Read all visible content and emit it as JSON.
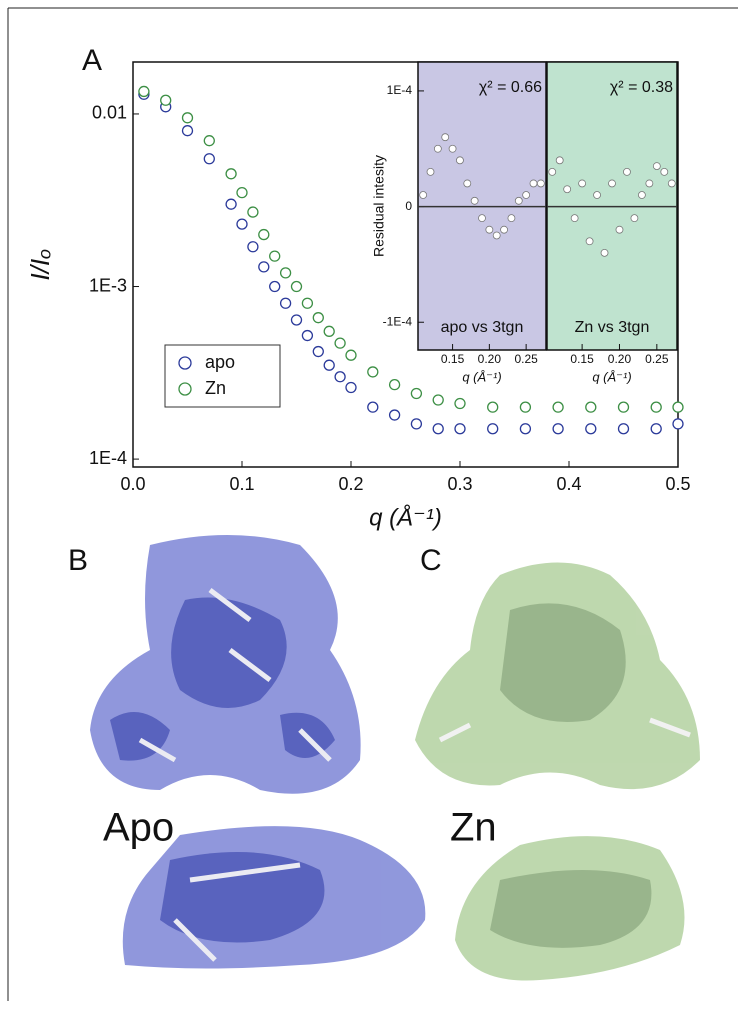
{
  "panel_labels": [
    "A",
    "B",
    "C"
  ],
  "structure_labels": [
    "Apo",
    "Zn"
  ],
  "chart_data": [
    {
      "type": "scatter",
      "xlabel": "q (Å⁻¹)",
      "ylabel": "I/Iₒ",
      "log_y": true,
      "legend": "center left",
      "xlim": [
        0,
        0.5
      ],
      "ylim": [
        9e-05,
        0.02
      ],
      "xticks": [
        {
          "value": 0,
          "label": "0.0"
        },
        0.1,
        0.2,
        0.3,
        0.4,
        0.5
      ],
      "yticks": [
        0.01,
        {
          "value": 0.001,
          "label": "1E-3"
        },
        {
          "value": 0.0001,
          "label": "1E-4"
        }
      ],
      "x": [
        0.01,
        0.03,
        0.05,
        0.07,
        0.09,
        0.1,
        0.11,
        0.12,
        0.13,
        0.14,
        0.15,
        0.16,
        0.17,
        0.18,
        0.19,
        0.2,
        0.22,
        0.24,
        0.26,
        0.28,
        0.3,
        0.33,
        0.36,
        0.39,
        0.42,
        0.45,
        0.48,
        0.5
      ],
      "series": [
        {
          "name": "apo",
          "color": "#2b3a9a",
          "values": [
            0.013,
            0.011,
            0.008,
            0.0055,
            0.003,
            0.0023,
            0.0017,
            0.0013,
            0.001,
            0.0008,
            0.00064,
            0.00052,
            0.00042,
            0.00035,
            0.0003,
            0.00026,
            0.0002,
            0.00018,
            0.00016,
            0.00015,
            0.00015,
            0.00015,
            0.00015,
            0.00015,
            0.00015,
            0.00015,
            0.00015,
            0.00016
          ]
        },
        {
          "name": "Zn",
          "color": "#3d8f45",
          "values": [
            0.0135,
            0.012,
            0.0095,
            0.007,
            0.0045,
            0.0035,
            0.0027,
            0.002,
            0.0015,
            0.0012,
            0.001,
            0.0008,
            0.00066,
            0.00055,
            0.00047,
            0.0004,
            0.00032,
            0.00027,
            0.00024,
            0.00022,
            0.00021,
            0.0002,
            0.0002,
            0.0002,
            0.0002,
            0.0002,
            0.0002,
            0.0002
          ]
        }
      ]
    },
    {
      "type": "scatter",
      "ylabel": "Residual intesity",
      "xlabel": "q (Å⁻¹)",
      "annotations": [
        "χ² = 0.66",
        "apo vs 3tgn"
      ],
      "xlim": [
        0.103,
        0.277
      ],
      "ylim": [
        -0.000124,
        0.000125
      ],
      "xticks": [
        0.15,
        {
          "value": 0.2,
          "label": "0.20"
        },
        0.25
      ],
      "yticks": [
        {
          "value": 0.0001,
          "label": "1E-4"
        },
        0,
        {
          "value": -0.0001,
          "label": "-1E-4"
        }
      ],
      "x": [
        0.11,
        0.12,
        0.13,
        0.14,
        0.15,
        0.16,
        0.17,
        0.18,
        0.19,
        0.2,
        0.21,
        0.22,
        0.23,
        0.24,
        0.25,
        0.26,
        0.27
      ],
      "series": [
        {
          "name": "apo",
          "color": "#ffffff",
          "values": [
            1e-05,
            3e-05,
            5e-05,
            6e-05,
            5e-05,
            4e-05,
            2e-05,
            5e-06,
            -1e-05,
            -2e-05,
            -2.5e-05,
            -2e-05,
            -1e-05,
            5e-06,
            1e-05,
            2e-05,
            2e-05
          ]
        }
      ]
    },
    {
      "type": "scatter",
      "xlabel": "q (Å⁻¹)",
      "annotations": [
        "χ² = 0.38",
        "Zn vs 3tgn"
      ],
      "xlim": [
        0.103,
        0.277
      ],
      "ylim": [
        -0.000124,
        0.000125
      ],
      "xticks": [
        0.15,
        {
          "value": 0.2,
          "label": "0.20"
        },
        0.25
      ],
      "x": [
        0.11,
        0.12,
        0.13,
        0.14,
        0.15,
        0.16,
        0.17,
        0.18,
        0.19,
        0.2,
        0.21,
        0.22,
        0.23,
        0.24,
        0.25,
        0.26,
        0.27
      ],
      "series": [
        {
          "name": "Zn",
          "color": "#ffffff",
          "values": [
            3e-05,
            4e-05,
            1.5e-05,
            -1e-05,
            2e-05,
            -3e-05,
            1e-05,
            -4e-05,
            2e-05,
            -2e-05,
            3e-05,
            -1e-05,
            1e-05,
            2e-05,
            3.5e-05,
            3e-05,
            2e-05
          ]
        }
      ]
    }
  ]
}
